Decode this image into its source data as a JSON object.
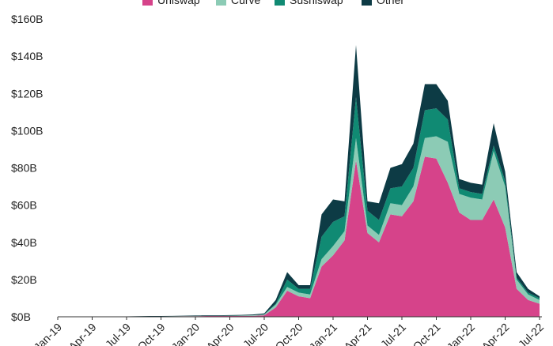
{
  "chart_data": {
    "type": "area",
    "stacked": true,
    "title": "",
    "xlabel": "",
    "ylabel": "",
    "ylim": [
      0,
      160
    ],
    "y_unit": "billions USD",
    "y_ticks": [
      "$0B",
      "$20B",
      "$40B",
      "$60B",
      "$80B",
      "$100B",
      "$120B",
      "$140B",
      "$160B"
    ],
    "y_tick_values": [
      0,
      20,
      40,
      60,
      80,
      100,
      120,
      140,
      160
    ],
    "x_ticks": [
      "Jan-19",
      "Apr-19",
      "Jul-19",
      "Oct-19",
      "Jan-20",
      "Apr-20",
      "Jul-20",
      "Oct-20",
      "Jan-21",
      "Apr-21",
      "Jul-21",
      "Oct-21",
      "Jan-22",
      "Apr-22",
      "Jul-22"
    ],
    "legend_position": "top",
    "grid": false,
    "x": [
      "2019-01",
      "2019-02",
      "2019-03",
      "2019-04",
      "2019-05",
      "2019-06",
      "2019-07",
      "2019-08",
      "2019-09",
      "2019-10",
      "2019-11",
      "2019-12",
      "2020-01",
      "2020-02",
      "2020-03",
      "2020-04",
      "2020-05",
      "2020-06",
      "2020-07",
      "2020-08",
      "2020-09",
      "2020-10",
      "2020-11",
      "2020-12",
      "2021-01",
      "2021-02",
      "2021-03",
      "2021-04",
      "2021-05",
      "2021-06",
      "2021-07",
      "2021-08",
      "2021-09",
      "2021-10",
      "2021-11",
      "2021-12",
      "2022-01",
      "2022-02",
      "2022-03",
      "2022-04",
      "2022-05",
      "2022-06",
      "2022-07"
    ],
    "series": [
      {
        "name": "Uniswap",
        "color": "#d6438a",
        "values": [
          0.1,
          0.1,
          0.1,
          0.1,
          0.1,
          0.1,
          0.1,
          0.2,
          0.2,
          0.2,
          0.2,
          0.3,
          0.3,
          0.4,
          0.4,
          0.4,
          0.5,
          0.5,
          0.8,
          5,
          14,
          11,
          10,
          27,
          33,
          41,
          84,
          45,
          40,
          55,
          54,
          62,
          86,
          85,
          72,
          56,
          52,
          52,
          63,
          48,
          15,
          9,
          7
        ]
      },
      {
        "name": "Curve",
        "color": "#8ccbb5",
        "values": [
          0,
          0,
          0,
          0,
          0,
          0,
          0,
          0,
          0,
          0,
          0.1,
          0.1,
          0.1,
          0.1,
          0.1,
          0.2,
          0.2,
          0.3,
          0.5,
          1.5,
          2,
          2,
          2,
          4,
          5,
          5,
          12,
          4,
          4,
          6,
          6,
          8,
          10,
          12,
          22,
          10,
          12,
          11,
          26,
          22,
          5,
          3,
          2
        ]
      },
      {
        "name": "Sushiswap",
        "color": "#108a73",
        "values": [
          0,
          0,
          0,
          0,
          0,
          0,
          0,
          0,
          0,
          0,
          0,
          0,
          0,
          0,
          0,
          0,
          0,
          0,
          0,
          0.5,
          4,
          2,
          3,
          12,
          13,
          8,
          22,
          8,
          8,
          8,
          10,
          10,
          15,
          15,
          12,
          3,
          3,
          3,
          3,
          3,
          1,
          1,
          1
        ]
      },
      {
        "name": "Other",
        "color": "#0d3b45",
        "values": [
          0.1,
          0.1,
          0.1,
          0.1,
          0.1,
          0.1,
          0.1,
          0.1,
          0.2,
          0.2,
          0.2,
          0.2,
          0.3,
          0.3,
          0.3,
          0.3,
          0.3,
          0.4,
          0.5,
          2,
          4,
          2,
          2,
          12,
          12,
          8,
          28,
          5,
          9,
          11,
          12,
          13,
          14,
          13,
          10,
          5,
          5,
          5,
          12,
          5,
          3,
          2,
          1
        ]
      }
    ]
  }
}
